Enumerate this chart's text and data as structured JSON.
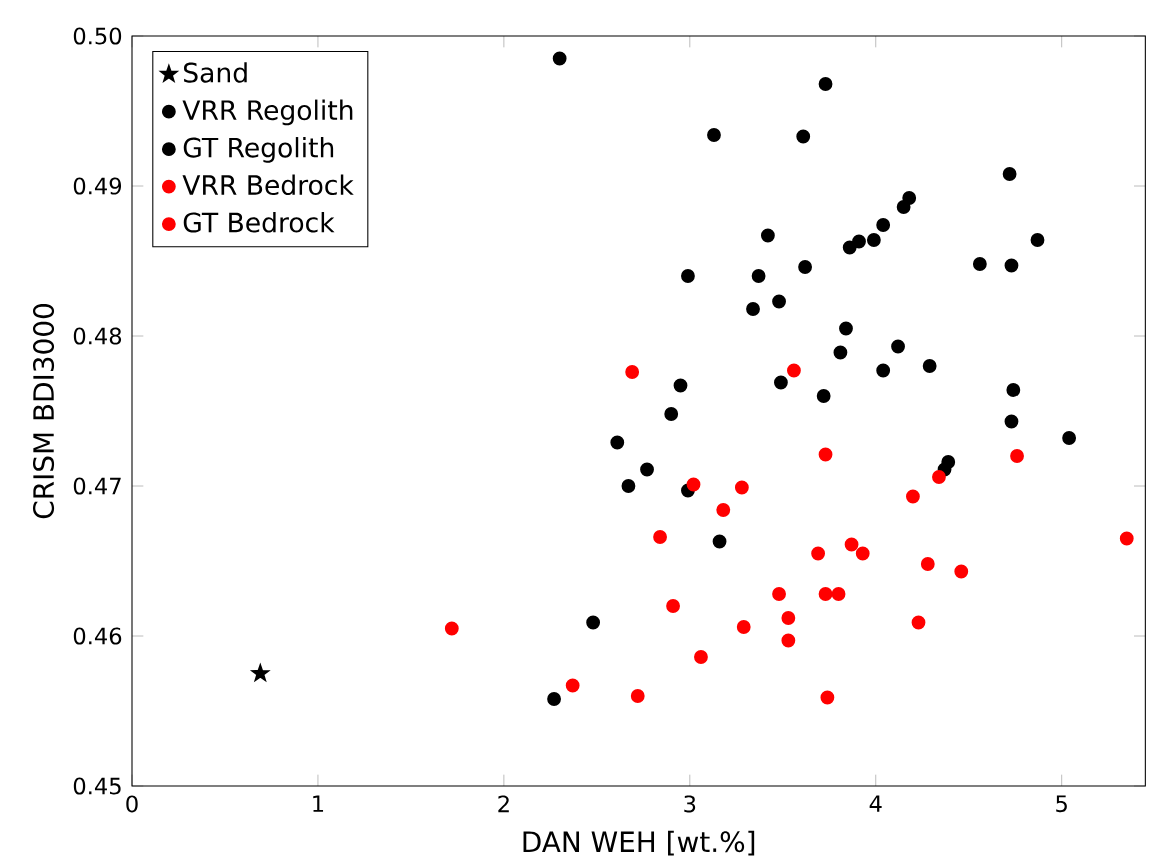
{
  "chart_data": {
    "type": "scatter",
    "xlabel": "DAN WEH [wt.%]",
    "ylabel": "CRISM BDI3000",
    "xlim": [
      0,
      5.45
    ],
    "ylim": [
      0.45,
      0.5
    ],
    "xticks": [
      0,
      1,
      2,
      3,
      4,
      5
    ],
    "yticks": [
      {
        "value": 0.45,
        "label": "0.45"
      },
      {
        "value": 0.46,
        "label": "0.46"
      },
      {
        "value": 0.47,
        "label": "0.47"
      },
      {
        "value": 0.48,
        "label": "0.48"
      },
      {
        "value": 0.49,
        "label": "0.49"
      },
      {
        "value": 0.5,
        "label": "0.50"
      }
    ],
    "grid": false,
    "legend": "top left",
    "series": [
      {
        "name": "Sand",
        "color": "#000000",
        "marker": "star",
        "x": [
          0.69
        ],
        "values": [
          0.4575
        ]
      },
      {
        "name": "VRR Regolith",
        "color": "#000000",
        "marker": "circle",
        "x": [
          2.3,
          3.73,
          3.13,
          3.37,
          3.62,
          3.84,
          2.95,
          3.49,
          2.9,
          2.61,
          2.67,
          2.77,
          2.99,
          2.48,
          2.27,
          3.16
        ],
        "values": [
          0.4985,
          0.4968,
          0.4934,
          0.484,
          0.4846,
          0.4805,
          0.4767,
          0.4769,
          0.4748,
          0.4729,
          0.47,
          0.4711,
          0.4697,
          0.4609,
          0.4558,
          0.4663
        ]
      },
      {
        "name": "GT Regolith",
        "color": "#000000",
        "marker": "circle",
        "x": [
          3.61,
          4.72,
          4.18,
          4.15,
          4.04,
          3.42,
          4.87,
          3.99,
          3.91,
          3.86,
          2.99,
          4.56,
          4.73,
          3.34,
          3.48,
          4.12,
          3.81,
          4.04,
          4.29,
          3.72,
          4.74,
          4.73,
          5.04,
          4.39,
          4.37
        ],
        "values": [
          0.4933,
          0.4908,
          0.4892,
          0.4886,
          0.4874,
          0.4867,
          0.4864,
          0.4864,
          0.4863,
          0.4859,
          0.484,
          0.4848,
          0.4847,
          0.4818,
          0.4823,
          0.4793,
          0.4789,
          0.4777,
          0.478,
          0.476,
          0.4764,
          0.4743,
          0.4732,
          0.4716,
          0.4711
        ]
      },
      {
        "name": "VRR Bedrock",
        "color": "#ff0000",
        "marker": "circle",
        "x": [
          2.69,
          3.56,
          3.28,
          3.18,
          2.84,
          3.69,
          3.93,
          3.48,
          3.73,
          2.91,
          3.29,
          3.06,
          3.74,
          1.72,
          2.37
        ],
        "values": [
          0.4776,
          0.4777,
          0.4699,
          0.4684,
          0.4666,
          0.4655,
          0.4655,
          0.4628,
          0.4628,
          0.462,
          0.4606,
          0.4586,
          0.4559,
          0.4605,
          0.4567
        ]
      },
      {
        "name": "GT Bedrock",
        "color": "#ff0000",
        "marker": "circle",
        "x": [
          3.02,
          3.73,
          4.76,
          4.34,
          4.2,
          3.87,
          5.35,
          4.28,
          4.46,
          3.8,
          3.53,
          4.23,
          3.53,
          2.72
        ],
        "values": [
          0.4701,
          0.4721,
          0.472,
          0.4706,
          0.4693,
          0.4661,
          0.4665,
          0.4648,
          0.4643,
          0.4628,
          0.4612,
          0.4609,
          0.4597,
          0.456
        ]
      }
    ]
  }
}
